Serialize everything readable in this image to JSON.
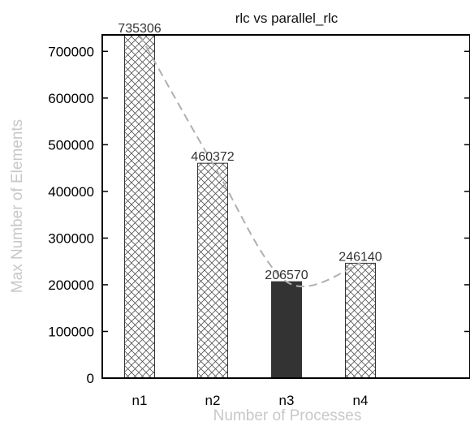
{
  "chart_data": {
    "type": "bar",
    "title": "rlc vs parallel_rlc",
    "xlabel": "Number of Processes",
    "ylabel": "Max Number of Elements",
    "categories": [
      "n1",
      "n2",
      "n3",
      "n4"
    ],
    "values": [
      735306,
      460372,
      206570,
      246140
    ],
    "data_labels": [
      "735306",
      "460372",
      "206570",
      "246140"
    ],
    "ylim": [
      0,
      735306
    ],
    "yticks": [
      0,
      100000,
      200000,
      300000,
      400000,
      500000,
      600000,
      700000
    ],
    "ytick_labels": [
      "0",
      "100000",
      "200000",
      "300000",
      "400000",
      "500000",
      "600000",
      "700000"
    ],
    "highlight_category": "n3",
    "trend_line": "dashed smooth curve through bar tops",
    "grid": false,
    "colors": {
      "bar_hatch": "#555555",
      "bar_highlight": "#333333",
      "trend_line": "#b0b0b0",
      "axis_title": "#c8c8c8"
    }
  }
}
